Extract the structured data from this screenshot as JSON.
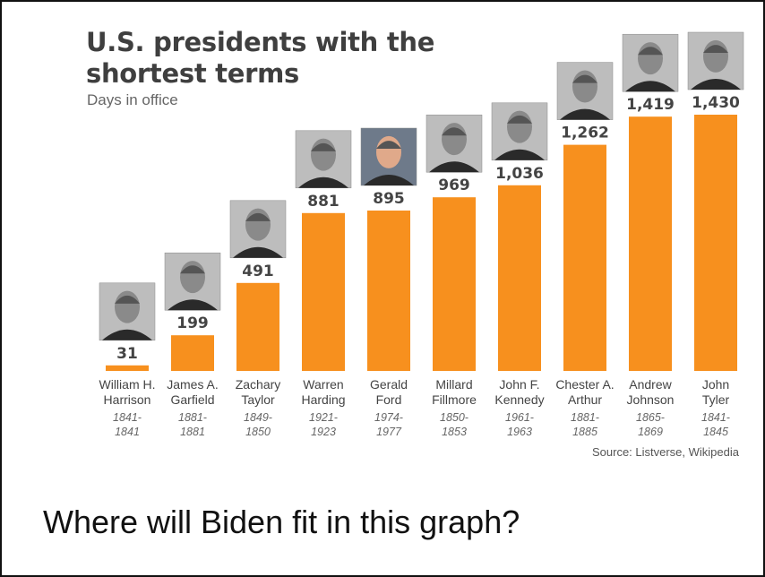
{
  "chart_data": {
    "type": "bar",
    "title_lines": [
      "U.S. presidents with the",
      "shortest terms"
    ],
    "subtitle": "Days in office",
    "source": "Source: Listverse, Wikipedia",
    "bar_color": "#f7901e",
    "value_label_color": "#444444",
    "categories": [
      {
        "name_lines": [
          "William H.",
          "Harrison"
        ],
        "years": [
          "1841-",
          "1841"
        ]
      },
      {
        "name_lines": [
          "James A.",
          "Garfield"
        ],
        "years": [
          "1881-",
          "1881"
        ]
      },
      {
        "name_lines": [
          "Zachary",
          "Taylor"
        ],
        "years": [
          "1849-",
          "1850"
        ]
      },
      {
        "name_lines": [
          "Warren",
          "Harding"
        ],
        "years": [
          "1921-",
          "1923"
        ]
      },
      {
        "name_lines": [
          "Gerald",
          "Ford"
        ],
        "years": [
          "1974-",
          "1977"
        ]
      },
      {
        "name_lines": [
          "Millard",
          "Fillmore"
        ],
        "years": [
          "1850-",
          "1853"
        ]
      },
      {
        "name_lines": [
          "John F.",
          "Kennedy"
        ],
        "years": [
          "1961-",
          "1963"
        ]
      },
      {
        "name_lines": [
          "Chester A.",
          "Arthur"
        ],
        "years": [
          "1881-",
          "1885"
        ]
      },
      {
        "name_lines": [
          "Andrew",
          "Johnson"
        ],
        "years": [
          "1865-",
          "1869"
        ]
      },
      {
        "name_lines": [
          "John",
          "Tyler"
        ],
        "years": [
          "1841-",
          "1845"
        ]
      }
    ],
    "values": [
      31,
      199,
      491,
      881,
      895,
      969,
      1036,
      1262,
      1419,
      1430
    ],
    "value_labels": [
      "31",
      "199",
      "491",
      "881",
      "895",
      "969",
      "1,036",
      "1,262",
      "1,419",
      "1,430"
    ],
    "ylim": [
      0,
      1430
    ],
    "grid": false,
    "legend": "none"
  },
  "caption": "Where will Biden fit in this graph?"
}
